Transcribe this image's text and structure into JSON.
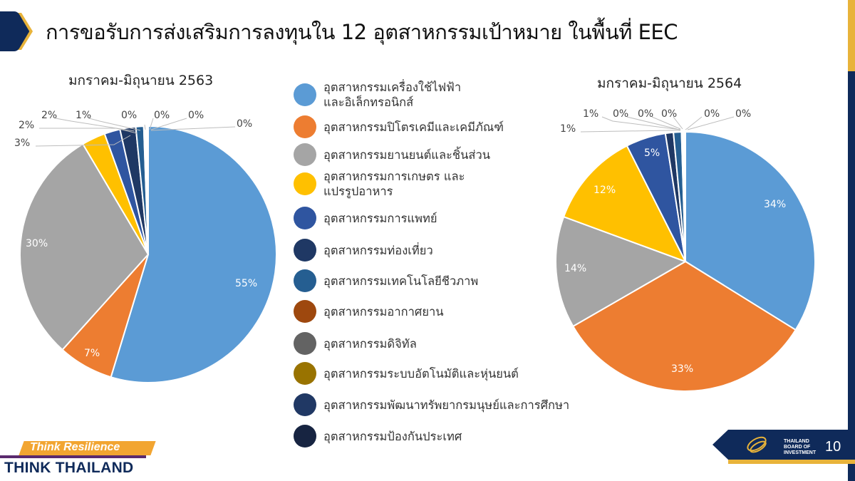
{
  "header": {
    "title": "การขอรับการส่งเสริมการลงทุนใน 12 อุตสาหกรรมเป้าหมาย ในพื้นที่ EEC",
    "chevron_colors": {
      "navy": "#0f2a5a",
      "gold": "#e8b33a"
    }
  },
  "legend": {
    "items": [
      {
        "label_line1": "อุตสาหกรรมเครื่องใช้ไฟฟ้า",
        "label_line2": "และอิเล็กทรอนิกส์",
        "color": "#5b9bd5"
      },
      {
        "label_line1": "อุตสาหกรรมปิโตรเคมีและเคมีภัณฑ์",
        "label_line2": "",
        "color": "#ed7d31"
      },
      {
        "label_line1": "อุตสาหกรรมยานยนต์และชิ้นส่วน",
        "label_line2": "",
        "color": "#a5a5a5"
      },
      {
        "label_line1": "อุตสาหกรรมการเกษตร และ",
        "label_line2": "แปรรูปอาหาร",
        "color": "#ffc000"
      },
      {
        "label_line1": "อุตสาหกรรมการแพทย์",
        "label_line2": "",
        "color": "#2f55a0"
      },
      {
        "label_line1": "อุตสาหกรรมท่องเที่ยว",
        "label_line2": "",
        "color": "#1f3864"
      },
      {
        "label_line1": "อุตสาหกรรมเทคโนโลยีชีวภาพ",
        "label_line2": "",
        "color": "#255e91"
      },
      {
        "label_line1": "อุตสาหกรรมอากาศยาน",
        "label_line2": "",
        "color": "#9e480e"
      },
      {
        "label_line1": "อุตสาหกรรมดิจิทัล",
        "label_line2": "",
        "color": "#636363"
      },
      {
        "label_line1": "อุตสาหกรรมระบบอัตโนมัติและหุ่นยนต์",
        "label_line2": "",
        "color": "#997300"
      },
      {
        "label_line1": "อุตสาหกรรมพัฒนาทรัพยากรมนุษย์และการศึกษา",
        "label_line2": "",
        "color": "#203864"
      },
      {
        "label_line1": "อุตสาหกรรมป้องกันประเทศ",
        "label_line2": "",
        "color": "#172441"
      }
    ]
  },
  "chart_data": [
    {
      "type": "pie",
      "title": "มกราคม-มิถุนายน 2563",
      "categories": [
        "อุตสาหกรรมเครื่องใช้ไฟฟ้าและอิเล็กทรอนิกส์",
        "อุตสาหกรรมปิโตรเคมีและเคมีภัณฑ์",
        "อุตสาหกรรมยานยนต์และชิ้นส่วน",
        "อุตสาหกรรมการเกษตร และแปรรูปอาหาร",
        "อุตสาหกรรมการแพทย์",
        "อุตสาหกรรมท่องเที่ยว",
        "อุตสาหกรรมเทคโนโลยีชีวภาพ",
        "อุตสาหกรรมอากาศยาน",
        "อุตสาหกรรมดิจิทัล",
        "อุตสาหกรรมระบบอัตโนมัติและหุ่นยนต์",
        "อุตสาหกรรมพัฒนาทรัพยากรมนุษย์และการศึกษา",
        "อุตสาหกรรมป้องกันประเทศ"
      ],
      "values": [
        55,
        7,
        30,
        3,
        2,
        2,
        1,
        0,
        0,
        0,
        0,
        0
      ],
      "labels": [
        "55%",
        "7%",
        "30%",
        "3%",
        "2%",
        "2%",
        "1%",
        "0%",
        "0%",
        "0%",
        "0%",
        "0%"
      ],
      "colors": [
        "#5b9bd5",
        "#ed7d31",
        "#a5a5a5",
        "#ffc000",
        "#2f55a0",
        "#1f3864",
        "#255e91",
        "#9e480e",
        "#636363",
        "#997300",
        "#203864",
        "#172441"
      ]
    },
    {
      "type": "pie",
      "title": "มกราคม-มิถุนายน 2564",
      "categories": [
        "อุตสาหกรรมเครื่องใช้ไฟฟ้าและอิเล็กทรอนิกส์",
        "อุตสาหกรรมปิโตรเคมีและเคมีภัณฑ์",
        "อุตสาหกรรมยานยนต์และชิ้นส่วน",
        "อุตสาหกรรมการเกษตร และแปรรูปอาหาร",
        "อุตสาหกรรมการแพทย์",
        "อุตสาหกรรมท่องเที่ยว",
        "อุตสาหกรรมเทคโนโลยีชีวภาพ",
        "อุตสาหกรรมอากาศยาน",
        "อุตสาหกรรมดิจิทัล",
        "อุตสาหกรรมระบบอัตโนมัติและหุ่นยนต์",
        "อุตสาหกรรมพัฒนาทรัพยากรมนุษย์และการศึกษา",
        "อุตสาหกรรมป้องกันประเทศ"
      ],
      "values": [
        34,
        33,
        14,
        12,
        5,
        1,
        1,
        0,
        0,
        0,
        0,
        0
      ],
      "labels": [
        "34%",
        "33%",
        "14%",
        "12%",
        "5%",
        "1%",
        "1%",
        "0%",
        "0%",
        "0%",
        "0%",
        "0%"
      ],
      "colors": [
        "#5b9bd5",
        "#ed7d31",
        "#a5a5a5",
        "#ffc000",
        "#2f55a0",
        "#1f3864",
        "#255e91",
        "#9e480e",
        "#636363",
        "#997300",
        "#203864",
        "#172441"
      ]
    }
  ],
  "footer": {
    "slogan_top": "Think Resilience",
    "slogan_bottom": "THINK THAILAND",
    "boi_line1": "THAILAND",
    "boi_line2": "BOARD OF",
    "boi_line3": "INVESTMENT",
    "page_number": "10"
  }
}
